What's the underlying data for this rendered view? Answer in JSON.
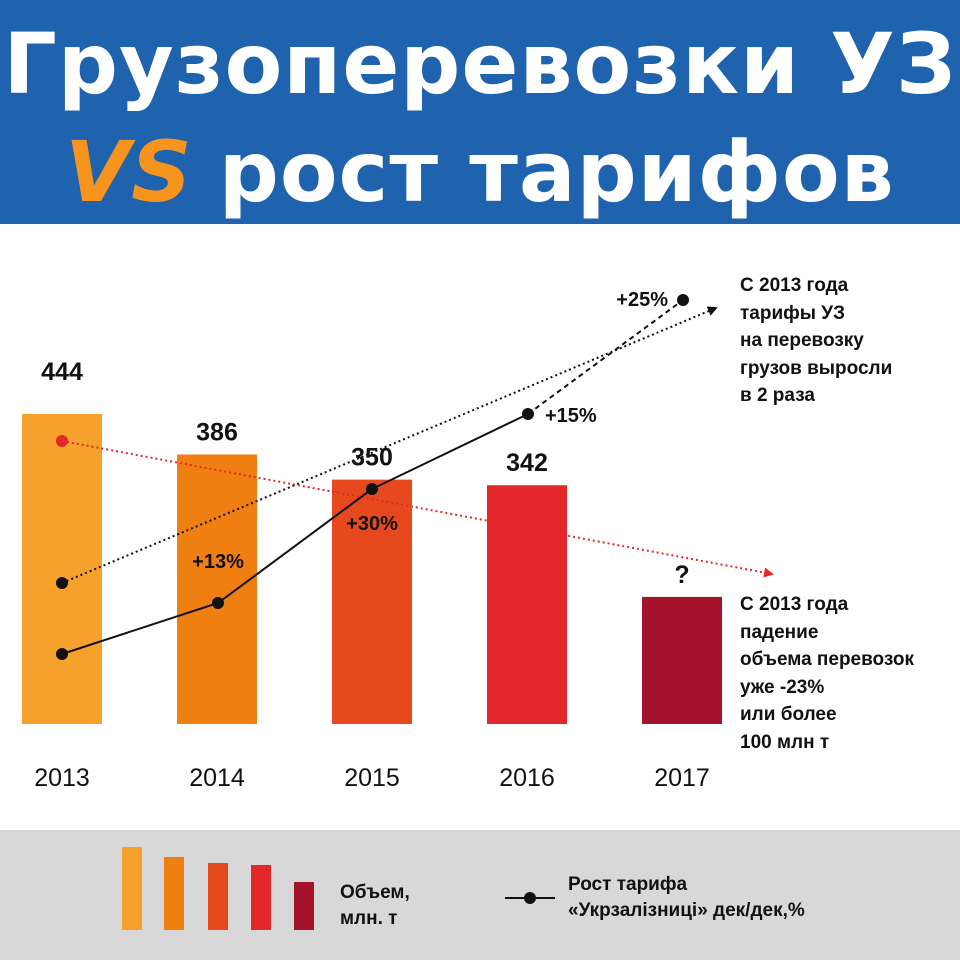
{
  "header": {
    "title_line1": "Грузоперевозки УЗ",
    "title_vs": "VS",
    "title_line2": "рост тарифов",
    "background_color": "#1f62ad",
    "vs_color": "#f7941d"
  },
  "chart_data": {
    "type": "bar",
    "categories": [
      "2013",
      "2014",
      "2015",
      "2016",
      "2017"
    ],
    "series": [
      {
        "name": "Объем, млн. т",
        "values": [
          444,
          386,
          350,
          342,
          null
        ],
        "value_labels": [
          "444",
          "386",
          "350",
          "342",
          "?"
        ],
        "colors": [
          "#f6a12b",
          "#f07f11",
          "#e6491e",
          "#e3272b",
          "#a5122c"
        ]
      }
    ],
    "tariff_line": {
      "name": "Рост тарифа «Укрзалізниці» дек/дек,%",
      "labels": [
        "",
        "+13%",
        "+30%",
        "+15%",
        "+25%"
      ]
    },
    "annotations": {
      "top_right": [
        "С 2013 года",
        "тарифы УЗ",
        "на перевозку",
        "грузов выросли",
        "в 2 раза"
      ],
      "bottom_right": [
        "С 2013 года",
        "падение",
        "объема перевозок",
        "уже -23%",
        "или более",
        "100 млн т"
      ]
    },
    "ylim": [
      0,
      600
    ],
    "grid": false
  },
  "legend": {
    "volume_label_line1": "Объем,",
    "volume_label_line2": "млн. т",
    "tariff_label_line1": "Рост тарифа",
    "tariff_label_line2": "«Укрзалізниці» дек/дек,%"
  }
}
